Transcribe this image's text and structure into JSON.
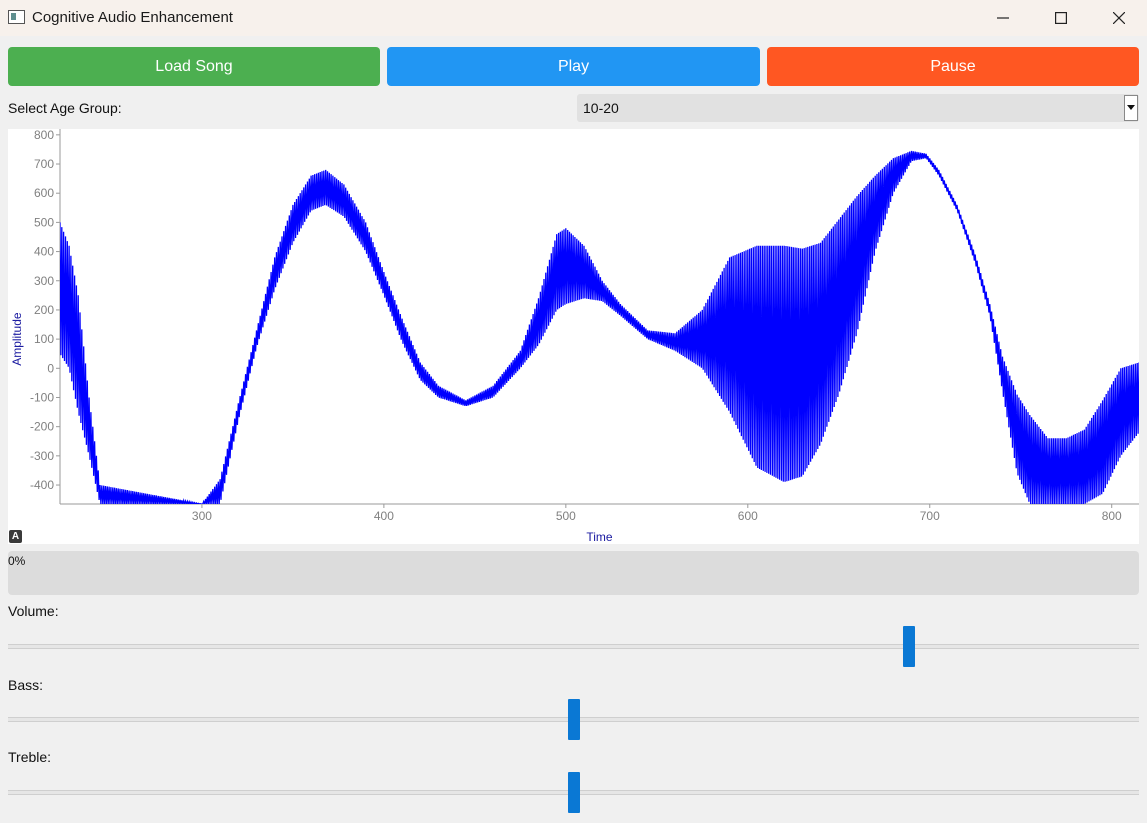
{
  "window": {
    "title": "Cognitive Audio Enhancement"
  },
  "buttons": {
    "load": {
      "label": "Load Song",
      "color": "#4caf50"
    },
    "play": {
      "label": "Play",
      "color": "#2196f3"
    },
    "pause": {
      "label": "Pause",
      "color": "#ff5722"
    }
  },
  "age_group": {
    "label": "Select Age Group:",
    "selected": "10-20"
  },
  "plot": {
    "auto_range_glyph": "A"
  },
  "chart_data": {
    "type": "line",
    "title": "",
    "xlabel": "Time",
    "ylabel": "Amplitude",
    "xlim": [
      222,
      815
    ],
    "ylim": [
      -465,
      820
    ],
    "x_ticks": [
      300,
      400,
      500,
      600,
      700,
      800
    ],
    "y_ticks": [
      800,
      700,
      600,
      500,
      400,
      300,
      200,
      100,
      0,
      -100,
      -200,
      -300,
      -400
    ],
    "line_color": "#0000ff",
    "envelope": [
      {
        "x": 222,
        "lo": 50,
        "hi": 500
      },
      {
        "x": 227,
        "lo": 0,
        "hi": 420
      },
      {
        "x": 232,
        "lo": -150,
        "hi": 250
      },
      {
        "x": 238,
        "lo": -300,
        "hi": -100
      },
      {
        "x": 244,
        "lo": -465,
        "hi": -400
      },
      {
        "x": 300,
        "lo": -465,
        "hi": -465
      },
      {
        "x": 310,
        "lo": -465,
        "hi": -380
      },
      {
        "x": 320,
        "lo": -180,
        "hi": -120
      },
      {
        "x": 330,
        "lo": 70,
        "hi": 130
      },
      {
        "x": 340,
        "lo": 270,
        "hi": 380
      },
      {
        "x": 350,
        "lo": 430,
        "hi": 560
      },
      {
        "x": 360,
        "lo": 540,
        "hi": 660
      },
      {
        "x": 368,
        "lo": 560,
        "hi": 680
      },
      {
        "x": 378,
        "lo": 520,
        "hi": 630
      },
      {
        "x": 390,
        "lo": 400,
        "hi": 500
      },
      {
        "x": 400,
        "lo": 250,
        "hi": 330
      },
      {
        "x": 410,
        "lo": 90,
        "hi": 170
      },
      {
        "x": 420,
        "lo": -40,
        "hi": 20
      },
      {
        "x": 430,
        "lo": -100,
        "hi": -60
      },
      {
        "x": 445,
        "lo": -130,
        "hi": -110
      },
      {
        "x": 460,
        "lo": -100,
        "hi": -60
      },
      {
        "x": 475,
        "lo": 0,
        "hi": 60
      },
      {
        "x": 485,
        "lo": 80,
        "hi": 240
      },
      {
        "x": 495,
        "lo": 200,
        "hi": 460
      },
      {
        "x": 500,
        "lo": 220,
        "hi": 480
      },
      {
        "x": 510,
        "lo": 240,
        "hi": 420
      },
      {
        "x": 520,
        "lo": 230,
        "hi": 300
      },
      {
        "x": 530,
        "lo": 180,
        "hi": 220
      },
      {
        "x": 545,
        "lo": 100,
        "hi": 130
      },
      {
        "x": 560,
        "lo": 60,
        "hi": 120
      },
      {
        "x": 575,
        "lo": 0,
        "hi": 200
      },
      {
        "x": 590,
        "lo": -150,
        "hi": 380
      },
      {
        "x": 605,
        "lo": -340,
        "hi": 420
      },
      {
        "x": 620,
        "lo": -390,
        "hi": 420
      },
      {
        "x": 630,
        "lo": -370,
        "hi": 410
      },
      {
        "x": 640,
        "lo": -260,
        "hi": 430
      },
      {
        "x": 650,
        "lo": -90,
        "hi": 510
      },
      {
        "x": 660,
        "lo": 120,
        "hi": 590
      },
      {
        "x": 670,
        "lo": 400,
        "hi": 660
      },
      {
        "x": 680,
        "lo": 600,
        "hi": 720
      },
      {
        "x": 690,
        "lo": 710,
        "hi": 745
      },
      {
        "x": 698,
        "lo": 720,
        "hi": 735
      },
      {
        "x": 705,
        "lo": 660,
        "hi": 680
      },
      {
        "x": 715,
        "lo": 540,
        "hi": 560
      },
      {
        "x": 725,
        "lo": 360,
        "hi": 390
      },
      {
        "x": 733,
        "lo": 180,
        "hi": 220
      },
      {
        "x": 740,
        "lo": -80,
        "hi": 40
      },
      {
        "x": 748,
        "lo": -360,
        "hi": -90
      },
      {
        "x": 755,
        "lo": -465,
        "hi": -160
      },
      {
        "x": 765,
        "lo": -465,
        "hi": -240
      },
      {
        "x": 775,
        "lo": -465,
        "hi": -240
      },
      {
        "x": 785,
        "lo": -465,
        "hi": -210
      },
      {
        "x": 795,
        "lo": -430,
        "hi": -110
      },
      {
        "x": 805,
        "lo": -300,
        "hi": 0
      },
      {
        "x": 815,
        "lo": -220,
        "hi": 20
      }
    ]
  },
  "progress": {
    "value": 0,
    "text": "0%"
  },
  "sliders": {
    "volume": {
      "label": "Volume:",
      "value": 80,
      "min": 0,
      "max": 100
    },
    "bass": {
      "label": "Bass:",
      "value": 50,
      "min": 0,
      "max": 100
    },
    "treble": {
      "label": "Treble:",
      "value": 50,
      "min": 0,
      "max": 100
    }
  }
}
